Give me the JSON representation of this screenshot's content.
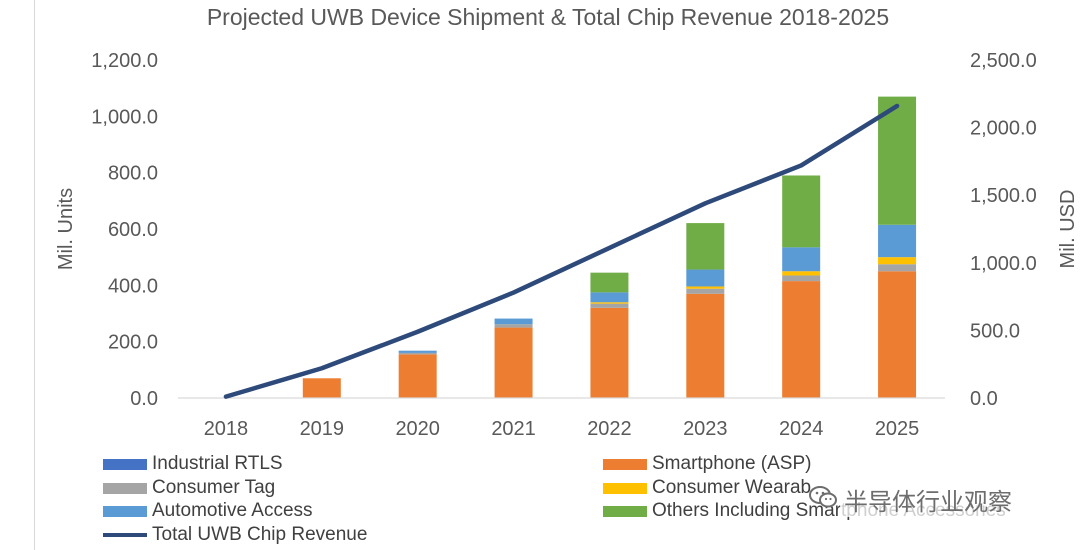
{
  "chart_data": {
    "type": "bar",
    "stacked": true,
    "title": "Projected UWB Device Shipment & Total Chip Revenue 2018-2025",
    "xlabel": "",
    "ylabel": "Mil. Units",
    "y2label": "Mil. USD",
    "ylim": [
      0,
      1200
    ],
    "y2lim": [
      0,
      2500
    ],
    "yticks": [
      "0.0",
      "200.0",
      "400.0",
      "600.0",
      "800.0",
      "1,000.0",
      "1,200.0"
    ],
    "y2ticks": [
      "0.0",
      "500.0",
      "1,000.0",
      "1,500.0",
      "2,000.0",
      "2,500.0"
    ],
    "categories": [
      "2018",
      "2019",
      "2020",
      "2021",
      "2022",
      "2023",
      "2024",
      "2025"
    ],
    "series": [
      {
        "name": "Industrial RTLS",
        "color": "#4472c4",
        "kind": "bar",
        "values": [
          0,
          0,
          0,
          0,
          0,
          0,
          0,
          0
        ]
      },
      {
        "name": "Smartphone (ASP)",
        "color": "#ed7d31",
        "kind": "bar",
        "values": [
          0,
          70,
          155,
          250,
          320,
          370,
          415,
          450
        ]
      },
      {
        "name": "Consumer Tag",
        "color": "#a5a5a5",
        "kind": "bar",
        "values": [
          0,
          0,
          5,
          12,
          15,
          18,
          20,
          25
        ]
      },
      {
        "name": "Consumer Wearables",
        "color": "#ffc000",
        "kind": "bar",
        "values": [
          0,
          0,
          0,
          0,
          5,
          8,
          15,
          25
        ]
      },
      {
        "name": "Automotive Access",
        "color": "#5b9bd5",
        "kind": "bar",
        "values": [
          0,
          0,
          8,
          20,
          35,
          60,
          85,
          115
        ]
      },
      {
        "name": "Others Including Smartphone Accessories",
        "color": "#70ad47",
        "kind": "bar",
        "values": [
          0,
          0,
          0,
          0,
          70,
          165,
          255,
          455
        ]
      },
      {
        "name": "Total UWB Chip Revenue",
        "color": "#2e4a7a",
        "kind": "line",
        "axis": "y2",
        "values": [
          10,
          220,
          490,
          780,
          1110,
          1440,
          1720,
          2160
        ]
      }
    ],
    "legend": {
      "placement": "bottom",
      "labels": [
        "Industrial RTLS",
        "Smartphone (ASP)",
        "Consumer Tag",
        "Consumer Wearab",
        "Automotive Access",
        "Others Including Smartphone Accessories",
        "Total UWB Chip Revenue"
      ]
    },
    "gridlines": false
  },
  "watermark": {
    "text": "半导体行业观察",
    "icon": "wechat-icon"
  }
}
